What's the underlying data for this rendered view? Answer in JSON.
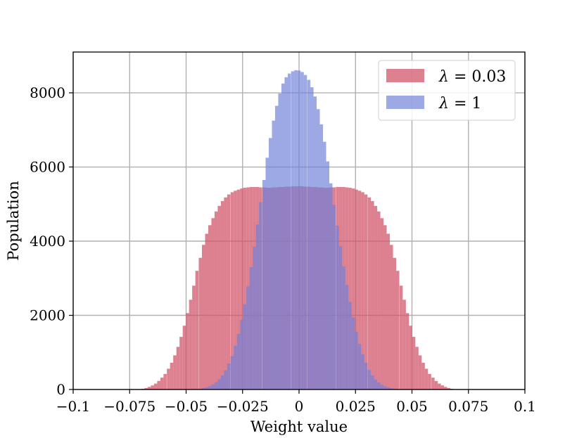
{
  "chart_data": {
    "type": "bar",
    "subtype": "overlaid histogram",
    "xlabel": "Weight value",
    "ylabel": "Population",
    "xlim": [
      -0.1,
      0.1
    ],
    "ylim": [
      0,
      9100
    ],
    "grid": true,
    "legend_position": "top-right",
    "x_ticks": [
      -0.1,
      -0.075,
      -0.05,
      -0.025,
      0,
      0.025,
      0.05,
      0.075,
      0.1
    ],
    "x_tick_labels": [
      "−0.1",
      "−0.075",
      "−0.05",
      "−0.025",
      "0",
      "0.025",
      "0.05",
      "0.075",
      "0.1"
    ],
    "y_ticks": [
      0,
      2000,
      4000,
      6000,
      8000
    ],
    "y_tick_labels": [
      "0",
      "2000",
      "4000",
      "6000",
      "8000"
    ],
    "series": [
      {
        "name": "λ = 0.03",
        "legend_symbol": "λ",
        "legend_rest": " = 0.03",
        "color": "#d1576c",
        "alpha": 0.75,
        "bin_width": 0.00141,
        "bin_centers": [
          -0.0691,
          -0.0677,
          -0.0663,
          -0.0649,
          -0.0635,
          -0.0621,
          -0.0607,
          -0.0593,
          -0.0578,
          -0.0564,
          -0.055,
          -0.0536,
          -0.0522,
          -0.0508,
          -0.0494,
          -0.048,
          -0.0466,
          -0.0452,
          -0.0437,
          -0.0423,
          -0.0409,
          -0.0395,
          -0.0381,
          -0.0367,
          -0.0353,
          -0.0339,
          -0.0325,
          -0.0311,
          -0.0296,
          -0.0282,
          -0.0268,
          -0.0254,
          -0.024,
          -0.0226,
          -0.0212,
          -0.0198,
          -0.0184,
          -0.017,
          -0.0155,
          -0.0141,
          -0.0127,
          -0.0113,
          -0.0099,
          -0.0085,
          -0.0071,
          -0.0057,
          -0.0043,
          -0.0028,
          -0.0014,
          0.0,
          0.0014,
          0.0028,
          0.0043,
          0.0057,
          0.0071,
          0.0085,
          0.0099,
          0.0113,
          0.0127,
          0.0141,
          0.0155,
          0.017,
          0.0184,
          0.0198,
          0.0212,
          0.0226,
          0.024,
          0.0254,
          0.0268,
          0.0282,
          0.0296,
          0.0311,
          0.0325,
          0.0339,
          0.0353,
          0.0367,
          0.0381,
          0.0395,
          0.0409,
          0.0423,
          0.0437,
          0.0452,
          0.0466,
          0.048,
          0.0494,
          0.0508,
          0.0522,
          0.0536,
          0.055,
          0.0564,
          0.0578,
          0.0593,
          0.0607,
          0.0621,
          0.0635,
          0.0649,
          0.0663,
          0.0677,
          0.0691
        ],
        "values": [
          20,
          40,
          70,
          110,
          160,
          230,
          320,
          420,
          560,
          720,
          920,
          1150,
          1420,
          1720,
          2060,
          2420,
          2800,
          3200,
          3550,
          3900,
          4200,
          4430,
          4620,
          4800,
          4950,
          5080,
          5180,
          5260,
          5320,
          5360,
          5390,
          5420,
          5440,
          5450,
          5460,
          5460,
          5460,
          5450,
          5450,
          5440,
          5440,
          5450,
          5450,
          5460,
          5460,
          5470,
          5470,
          5480,
          5480,
          5480,
          5480,
          5470,
          5470,
          5460,
          5460,
          5450,
          5450,
          5440,
          5440,
          5450,
          5450,
          5460,
          5460,
          5460,
          5450,
          5440,
          5420,
          5390,
          5360,
          5320,
          5260,
          5180,
          5080,
          4950,
          4800,
          4620,
          4430,
          4200,
          3900,
          3550,
          3200,
          2800,
          2420,
          2060,
          1720,
          1420,
          1150,
          920,
          720,
          560,
          420,
          320,
          230,
          160,
          110,
          70,
          40,
          20,
          10
        ]
      },
      {
        "name": "λ = 1",
        "legend_symbol": "λ",
        "legend_rest": " = 1",
        "color": "#6f80d9",
        "alpha": 0.68,
        "bin_width": 0.00141,
        "bin_centers": [
          -0.0452,
          -0.0437,
          -0.0423,
          -0.0409,
          -0.0395,
          -0.0381,
          -0.0367,
          -0.0353,
          -0.0339,
          -0.0325,
          -0.0311,
          -0.0296,
          -0.0282,
          -0.0268,
          -0.0254,
          -0.024,
          -0.0226,
          -0.0212,
          -0.0198,
          -0.0184,
          -0.017,
          -0.0155,
          -0.0141,
          -0.0127,
          -0.0113,
          -0.0099,
          -0.0085,
          -0.0071,
          -0.0057,
          -0.0043,
          -0.0028,
          -0.0014,
          0.0,
          0.0014,
          0.0028,
          0.0043,
          0.0057,
          0.0071,
          0.0085,
          0.0099,
          0.0113,
          0.0127,
          0.0141,
          0.0155,
          0.017,
          0.0184,
          0.0198,
          0.0212,
          0.0226,
          0.024,
          0.0254,
          0.0268,
          0.0282,
          0.0296,
          0.0311,
          0.0325,
          0.0339,
          0.0353,
          0.0367,
          0.0381,
          0.0395,
          0.0409,
          0.0423,
          0.0437,
          0.0452
        ],
        "values": [
          10,
          20,
          40,
          60,
          90,
          140,
          200,
          280,
          380,
          520,
          700,
          900,
          1180,
          1500,
          1880,
          2300,
          2780,
          3300,
          3850,
          4450,
          5050,
          5650,
          6250,
          6780,
          7250,
          7650,
          7980,
          8250,
          8420,
          8520,
          8580,
          8610,
          8600,
          8560,
          8480,
          8350,
          8150,
          7900,
          7560,
          7150,
          6680,
          6150,
          5560,
          4980,
          4420,
          3860,
          3320,
          2820,
          2360,
          1940,
          1560,
          1230,
          950,
          720,
          530,
          380,
          270,
          190,
          130,
          85,
          55,
          35,
          20,
          10,
          5
        ]
      }
    ]
  }
}
